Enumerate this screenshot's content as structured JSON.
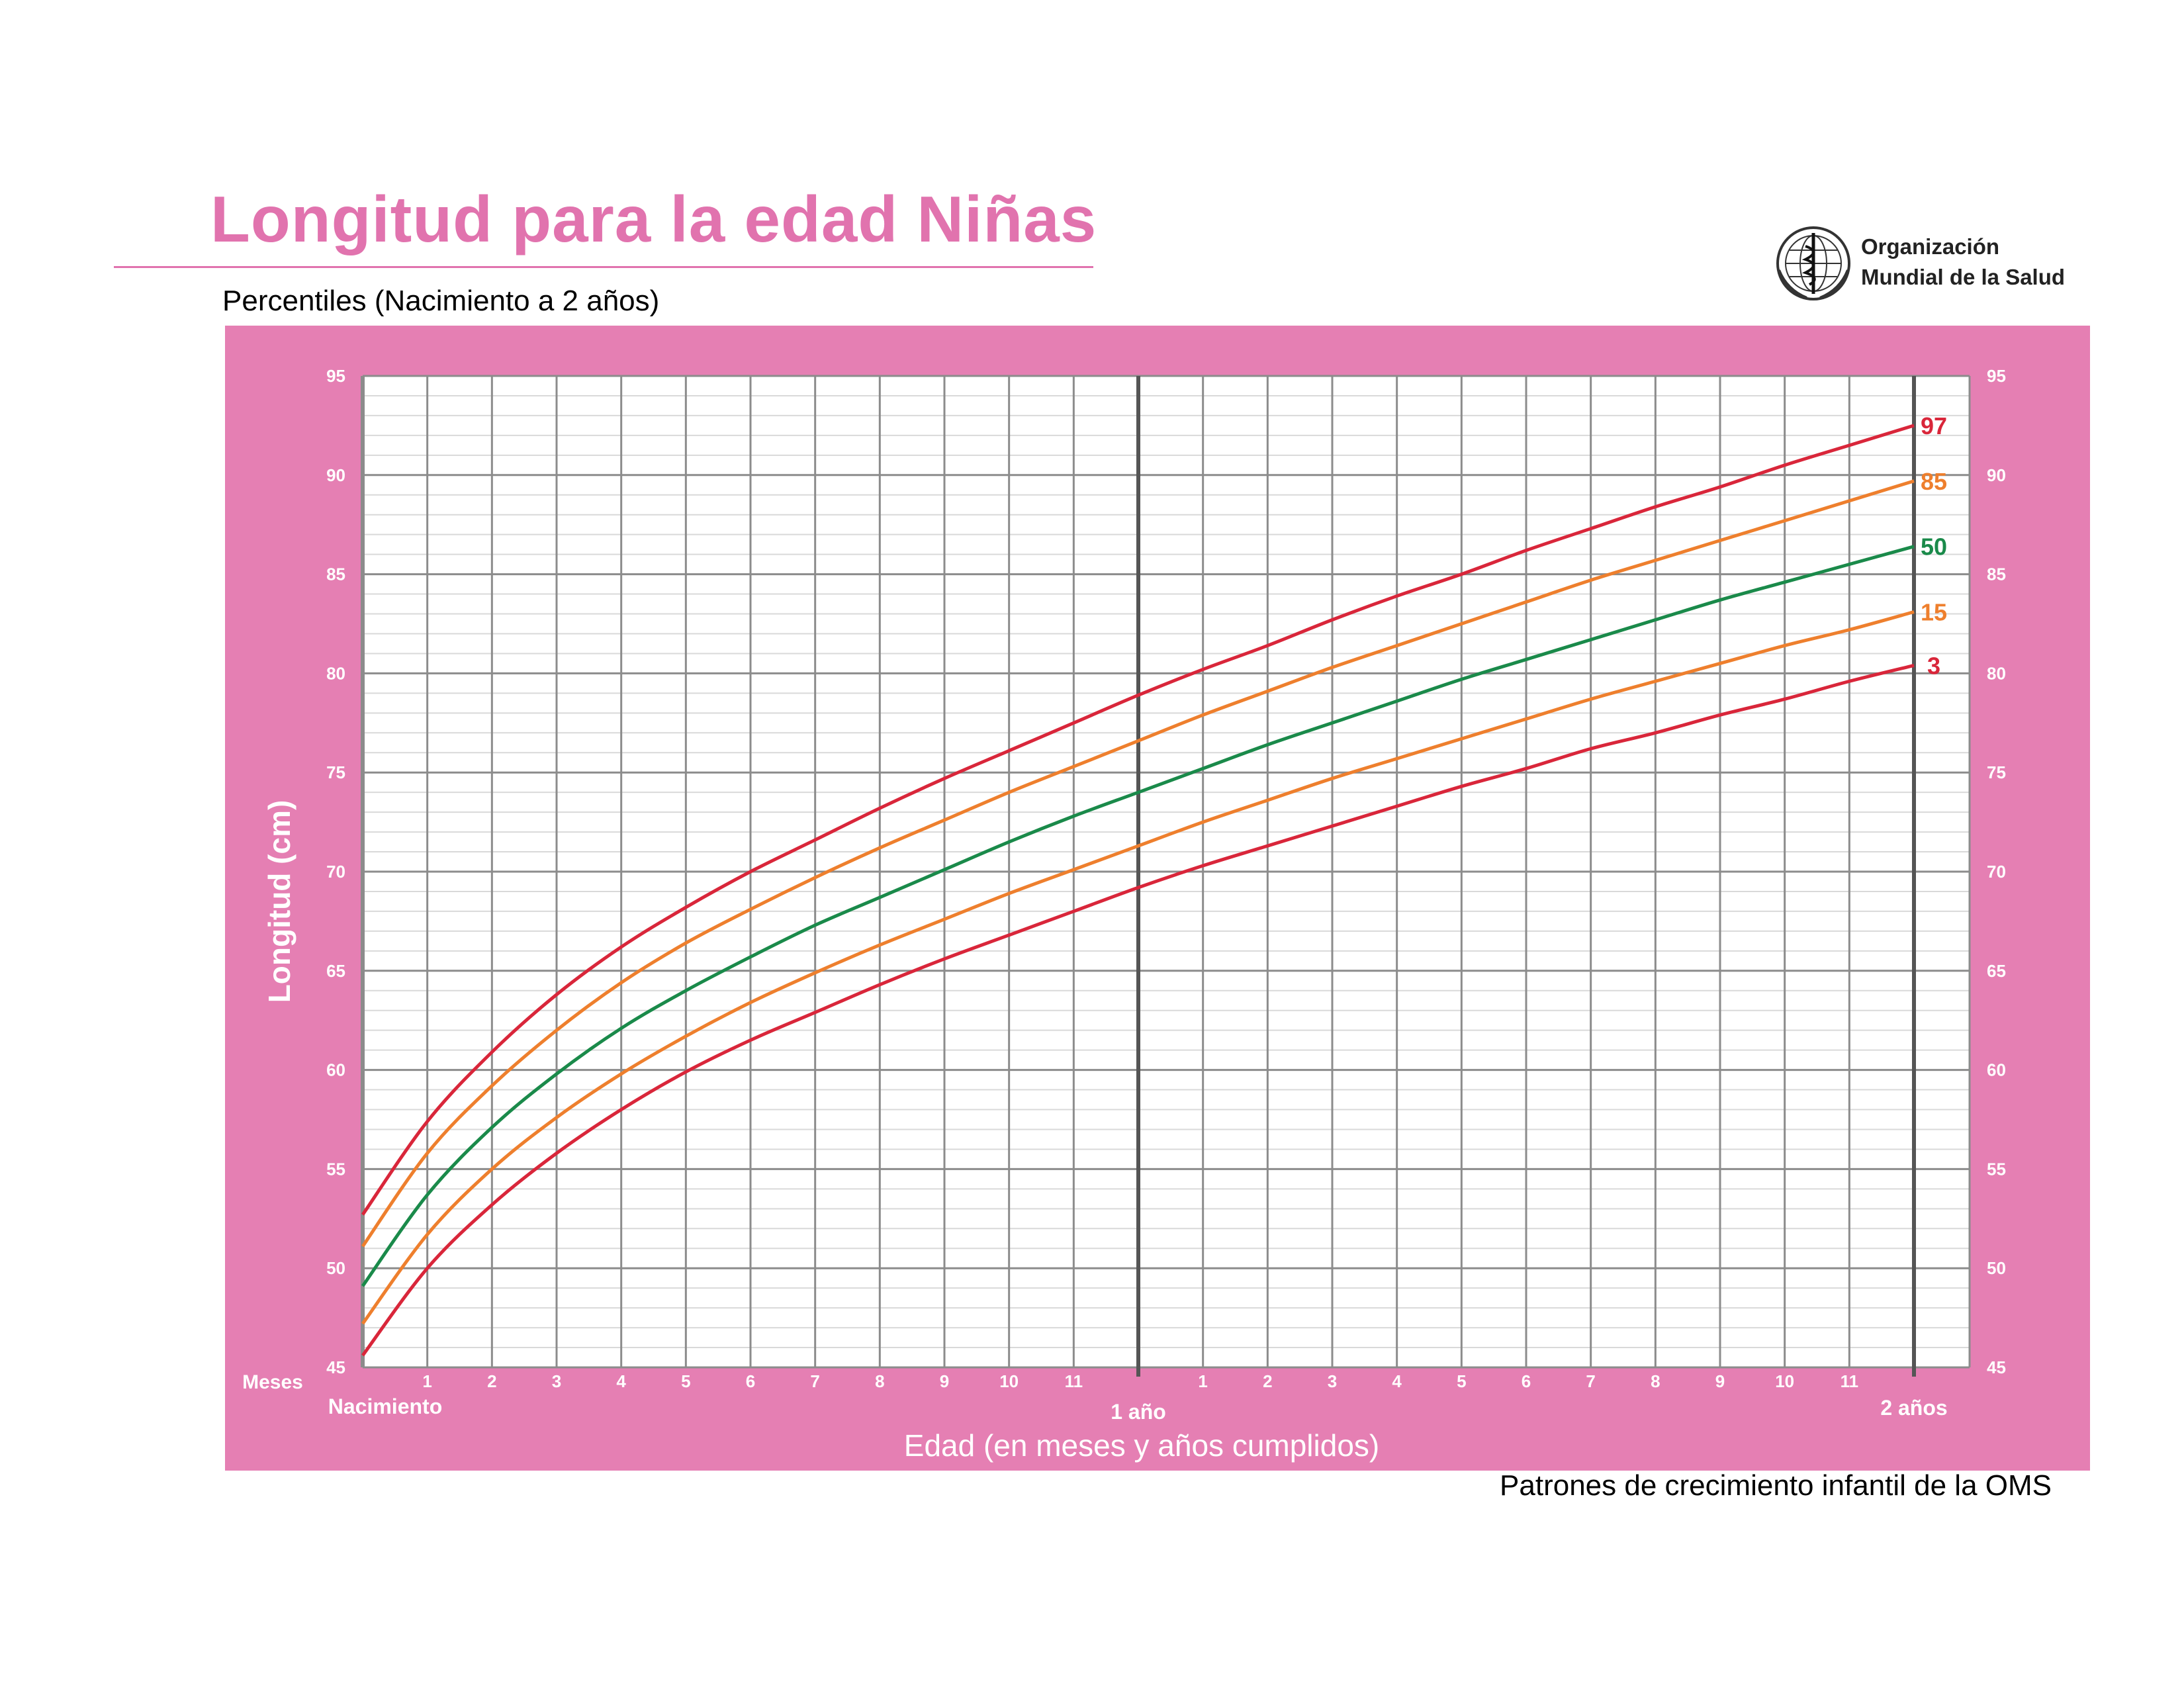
{
  "header": {
    "title": "Longitud para la edad Niñas",
    "subtitle": "Percentiles (Nacimiento a 2 años)",
    "org_line1": "Organización",
    "org_line2": "Mundial de la Salud",
    "footer": "Patrones de crecimiento infantil de la OMS"
  },
  "colors": {
    "brand_pink": "#e173ae",
    "panel_pink": "#e57fb3",
    "grid_bg": "#ffffff",
    "grid_line": "#8c8c8c",
    "minor_line": "#d9d9d9",
    "p97": "#d9263a",
    "p85": "#ee7f2d",
    "p50": "#1a8a4a",
    "p15": "#ee7f2d",
    "p3": "#d9263a"
  },
  "icons": [
    "who-emblem-icon"
  ],
  "chart_data": {
    "type": "line",
    "ylabel": "Longitud (cm)",
    "xlabel": "Edad (en meses y años cumplidos)",
    "months_label": "Meses",
    "birth_label": "Nacimiento",
    "year1_label": "1 año",
    "year2_label": "2 años",
    "x_tick_labels": [
      "1",
      "2",
      "3",
      "4",
      "5",
      "6",
      "7",
      "8",
      "9",
      "10",
      "11",
      "1",
      "2",
      "3",
      "4",
      "5",
      "6",
      "7",
      "8",
      "9",
      "10",
      "11"
    ],
    "xlim": [
      0,
      24
    ],
    "ylim": [
      45,
      95
    ],
    "y_ticks": [
      45,
      50,
      55,
      60,
      65,
      70,
      75,
      80,
      85,
      90,
      95
    ],
    "grid": true,
    "x": [
      0,
      1,
      2,
      3,
      4,
      5,
      6,
      7,
      8,
      9,
      10,
      11,
      12,
      13,
      14,
      15,
      16,
      17,
      18,
      19,
      20,
      21,
      22,
      23,
      24
    ],
    "series": [
      {
        "name": "97",
        "color_key": "p97",
        "values": [
          52.7,
          57.4,
          60.9,
          63.8,
          66.2,
          68.2,
          70.0,
          71.6,
          73.2,
          74.7,
          76.1,
          77.5,
          78.9,
          80.2,
          81.4,
          82.7,
          83.9,
          85.0,
          86.2,
          87.3,
          88.4,
          89.4,
          90.5,
          91.5,
          92.5
        ]
      },
      {
        "name": "85",
        "color_key": "p85",
        "values": [
          51.1,
          55.8,
          59.2,
          62.0,
          64.4,
          66.4,
          68.1,
          69.7,
          71.2,
          72.6,
          74.0,
          75.3,
          76.6,
          77.9,
          79.1,
          80.3,
          81.4,
          82.5,
          83.6,
          84.7,
          85.7,
          86.7,
          87.7,
          88.7,
          89.7
        ]
      },
      {
        "name": "50",
        "color_key": "p50",
        "values": [
          49.1,
          53.7,
          57.1,
          59.8,
          62.1,
          64.0,
          65.7,
          67.3,
          68.7,
          70.1,
          71.5,
          72.8,
          74.0,
          75.2,
          76.4,
          77.5,
          78.6,
          79.7,
          80.7,
          81.7,
          82.7,
          83.7,
          84.6,
          85.5,
          86.4
        ]
      },
      {
        "name": "15",
        "color_key": "p15",
        "values": [
          47.2,
          51.7,
          55.0,
          57.6,
          59.8,
          61.7,
          63.4,
          64.9,
          66.3,
          67.6,
          68.9,
          70.1,
          71.3,
          72.5,
          73.6,
          74.7,
          75.7,
          76.7,
          77.7,
          78.7,
          79.6,
          80.5,
          81.4,
          82.2,
          83.1
        ]
      },
      {
        "name": "3",
        "color_key": "p3",
        "values": [
          45.6,
          50.0,
          53.2,
          55.8,
          58.0,
          59.9,
          61.5,
          62.9,
          64.3,
          65.6,
          66.8,
          68.0,
          69.2,
          70.3,
          71.3,
          72.3,
          73.3,
          74.3,
          75.2,
          76.2,
          77.0,
          77.9,
          78.7,
          79.6,
          80.4
        ]
      }
    ]
  }
}
